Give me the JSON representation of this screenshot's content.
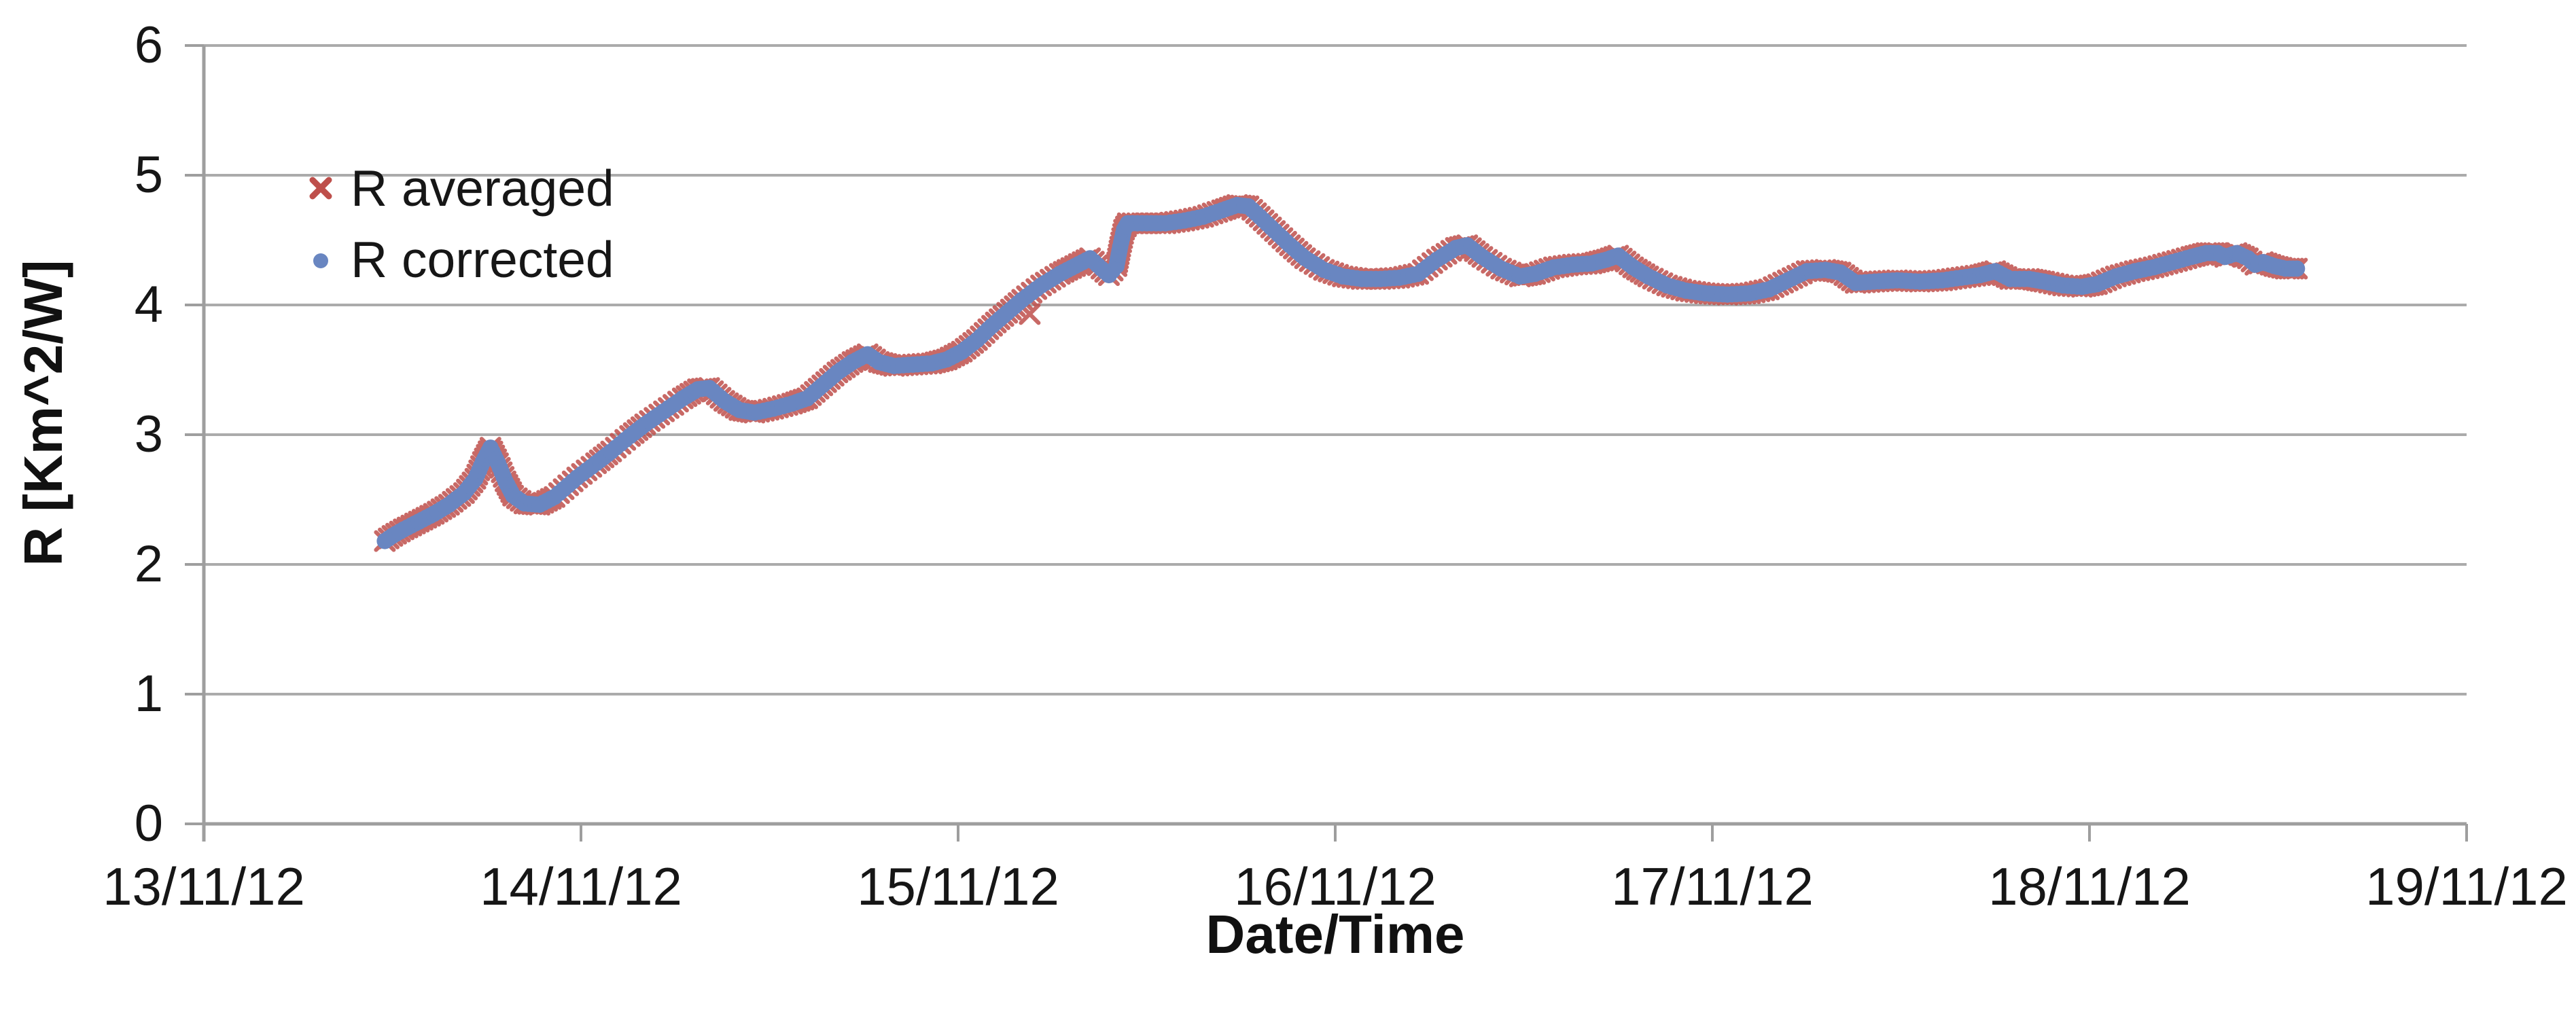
{
  "chart_data": {
    "type": "scatter",
    "title": "",
    "xlabel": "Date/Time",
    "ylabel": "R [Km^2/W]",
    "x_tick_labels": [
      "13/11/12",
      "14/11/12",
      "15/11/12",
      "16/11/12",
      "17/11/12",
      "18/11/12",
      "19/11/12"
    ],
    "x_range_days": [
      13,
      19
    ],
    "y_ticks": [
      0,
      1,
      2,
      3,
      4,
      5,
      6
    ],
    "ylim": [
      0,
      6
    ],
    "grid": "horizontal-gridlines-on",
    "legend_position": "inside-top-left",
    "colors": {
      "averaged": "#BE4F4B",
      "corrected": "#6986C1",
      "gridline": "#ABABAB",
      "axis": "#9E9E9E",
      "text": "#1A1A1A"
    },
    "points_day_value": [
      [
        13.48,
        2.18
      ],
      [
        13.5,
        2.22
      ],
      [
        13.53,
        2.27
      ],
      [
        13.57,
        2.33
      ],
      [
        13.61,
        2.39
      ],
      [
        13.65,
        2.46
      ],
      [
        13.69,
        2.55
      ],
      [
        13.72,
        2.66
      ],
      [
        13.74,
        2.79
      ],
      [
        13.76,
        2.9
      ],
      [
        13.78,
        2.78
      ],
      [
        13.8,
        2.64
      ],
      [
        13.82,
        2.53
      ],
      [
        13.85,
        2.47
      ],
      [
        13.89,
        2.46
      ],
      [
        13.93,
        2.52
      ],
      [
        13.99,
        2.67
      ],
      [
        14.04,
        2.78
      ],
      [
        14.08,
        2.87
      ],
      [
        14.13,
        2.99
      ],
      [
        14.17,
        3.08
      ],
      [
        14.22,
        3.18
      ],
      [
        14.27,
        3.28
      ],
      [
        14.31,
        3.35
      ],
      [
        14.34,
        3.36
      ],
      [
        14.38,
        3.26
      ],
      [
        14.42,
        3.19
      ],
      [
        14.46,
        3.17
      ],
      [
        14.51,
        3.2
      ],
      [
        14.56,
        3.24
      ],
      [
        14.6,
        3.28
      ],
      [
        14.64,
        3.38
      ],
      [
        14.68,
        3.48
      ],
      [
        14.72,
        3.56
      ],
      [
        14.76,
        3.62
      ],
      [
        14.79,
        3.56
      ],
      [
        14.83,
        3.53
      ],
      [
        14.88,
        3.54
      ],
      [
        14.93,
        3.55
      ],
      [
        14.97,
        3.58
      ],
      [
        15.01,
        3.64
      ],
      [
        15.05,
        3.73
      ],
      [
        15.09,
        3.84
      ],
      [
        15.13,
        3.94
      ],
      [
        15.17,
        4.04
      ],
      [
        15.22,
        4.15
      ],
      [
        15.27,
        4.24
      ],
      [
        15.31,
        4.3
      ],
      [
        15.35,
        4.36
      ],
      [
        15.38,
        4.28
      ],
      [
        15.4,
        4.23
      ],
      [
        15.42,
        4.3
      ],
      [
        15.43,
        4.45
      ],
      [
        15.44,
        4.58
      ],
      [
        15.45,
        4.63
      ],
      [
        15.5,
        4.63
      ],
      [
        15.55,
        4.63
      ],
      [
        15.6,
        4.65
      ],
      [
        15.65,
        4.68
      ],
      [
        15.7,
        4.73
      ],
      [
        15.74,
        4.77
      ],
      [
        15.77,
        4.76
      ],
      [
        15.8,
        4.68
      ],
      [
        15.84,
        4.57
      ],
      [
        15.88,
        4.46
      ],
      [
        15.92,
        4.36
      ],
      [
        15.97,
        4.27
      ],
      [
        16.02,
        4.22
      ],
      [
        16.07,
        4.2
      ],
      [
        16.12,
        4.2
      ],
      [
        16.17,
        4.21
      ],
      [
        16.22,
        4.24
      ],
      [
        16.27,
        4.35
      ],
      [
        16.32,
        4.44
      ],
      [
        16.35,
        4.46
      ],
      [
        16.39,
        4.37
      ],
      [
        16.44,
        4.28
      ],
      [
        16.49,
        4.22
      ],
      [
        16.53,
        4.24
      ],
      [
        16.58,
        4.29
      ],
      [
        16.63,
        4.31
      ],
      [
        16.68,
        4.32
      ],
      [
        16.72,
        4.35
      ],
      [
        16.75,
        4.38
      ],
      [
        16.79,
        4.29
      ],
      [
        16.83,
        4.22
      ],
      [
        16.88,
        4.15
      ],
      [
        16.93,
        4.11
      ],
      [
        16.98,
        4.09
      ],
      [
        17.04,
        4.08
      ],
      [
        17.1,
        4.09
      ],
      [
        17.15,
        4.12
      ],
      [
        17.2,
        4.19
      ],
      [
        17.25,
        4.26
      ],
      [
        17.3,
        4.27
      ],
      [
        17.34,
        4.25
      ],
      [
        17.38,
        4.17
      ],
      [
        17.43,
        4.18
      ],
      [
        17.49,
        4.19
      ],
      [
        17.55,
        4.18
      ],
      [
        17.61,
        4.19
      ],
      [
        17.66,
        4.21
      ],
      [
        17.71,
        4.23
      ],
      [
        17.75,
        4.26
      ],
      [
        17.79,
        4.2
      ],
      [
        17.84,
        4.2
      ],
      [
        17.88,
        4.18
      ],
      [
        17.93,
        4.15
      ],
      [
        17.98,
        4.14
      ],
      [
        18.02,
        4.16
      ],
      [
        18.07,
        4.22
      ],
      [
        18.12,
        4.26
      ],
      [
        18.17,
        4.29
      ],
      [
        18.22,
        4.33
      ],
      [
        18.27,
        4.37
      ],
      [
        18.31,
        4.4
      ],
      [
        18.34,
        4.4
      ],
      [
        18.36,
        4.37
      ],
      [
        18.39,
        4.4
      ],
      [
        18.42,
        4.36
      ],
      [
        18.44,
        4.31
      ],
      [
        18.46,
        4.33
      ],
      [
        18.49,
        4.3
      ],
      [
        18.52,
        4.28
      ],
      [
        18.55,
        4.28
      ]
    ],
    "series": [
      {
        "name": "R averaged",
        "marker": "x",
        "color_key": "averaged",
        "points": "points_day_value",
        "extra_points": [
          [
            15.19,
            3.93
          ]
        ]
      },
      {
        "name": "R corrected",
        "marker": "circle",
        "color_key": "corrected",
        "points": "points_day_value"
      }
    ]
  }
}
